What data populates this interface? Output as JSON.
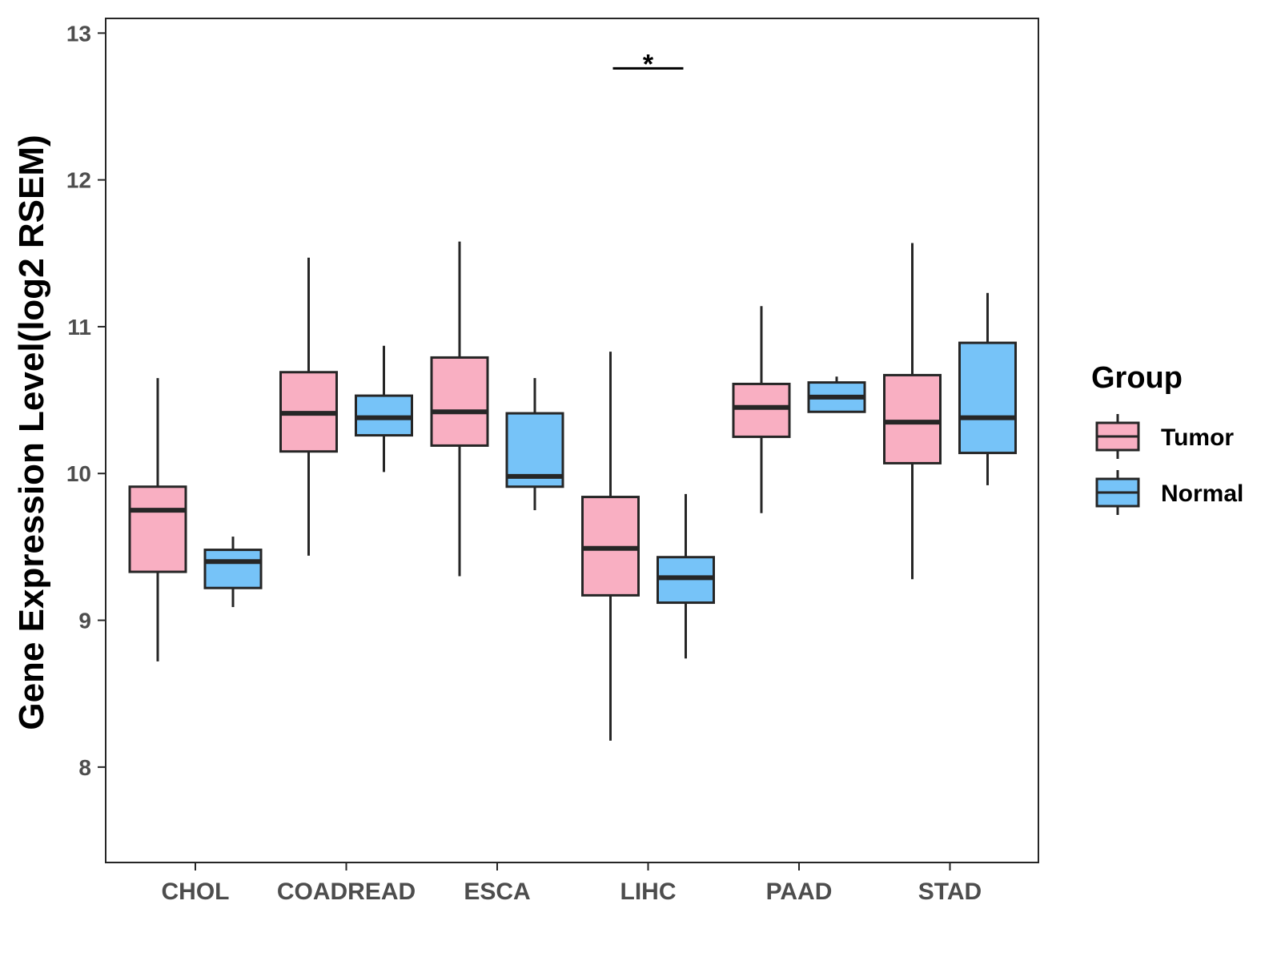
{
  "chart_data": {
    "type": "boxplot",
    "title": "",
    "xlabel": "",
    "ylabel": "Gene Expression Level(log2 RSEM)",
    "ylim": [
      7.35,
      13.1
    ],
    "yticks": [
      "8",
      "9",
      "10",
      "11",
      "12",
      "13"
    ],
    "grid": false,
    "categories": [
      "CHOL",
      "COADREAD",
      "ESCA",
      "LIHC",
      "PAAD",
      "STAD"
    ],
    "legend": {
      "title": "Group",
      "position": "right",
      "items": [
        {
          "name": "Tumor",
          "color": "#f9afc2"
        },
        {
          "name": "Normal",
          "color": "#76c3f8"
        }
      ]
    },
    "series": [
      {
        "name": "Tumor",
        "color": "#f9afc2",
        "boxes": [
          {
            "category": "CHOL",
            "min": 8.72,
            "q1": 9.33,
            "median": 9.75,
            "q3": 9.91,
            "max": 10.65
          },
          {
            "category": "COADREAD",
            "min": 9.44,
            "q1": 10.15,
            "median": 10.41,
            "q3": 10.69,
            "max": 11.47
          },
          {
            "category": "ESCA",
            "min": 9.3,
            "q1": 10.19,
            "median": 10.42,
            "q3": 10.79,
            "max": 11.58
          },
          {
            "category": "LIHC",
            "min": 8.18,
            "q1": 9.17,
            "median": 9.49,
            "q3": 9.84,
            "max": 10.83
          },
          {
            "category": "PAAD",
            "min": 9.73,
            "q1": 10.25,
            "median": 10.45,
            "q3": 10.61,
            "max": 11.14
          },
          {
            "category": "STAD",
            "min": 9.28,
            "q1": 10.07,
            "median": 10.35,
            "q3": 10.67,
            "max": 11.57
          }
        ]
      },
      {
        "name": "Normal",
        "color": "#76c3f8",
        "boxes": [
          {
            "category": "CHOL",
            "min": 9.09,
            "q1": 9.22,
            "median": 9.4,
            "q3": 9.48,
            "max": 9.57
          },
          {
            "category": "COADREAD",
            "min": 10.01,
            "q1": 10.26,
            "median": 10.38,
            "q3": 10.53,
            "max": 10.87
          },
          {
            "category": "ESCA",
            "min": 9.75,
            "q1": 9.91,
            "median": 9.98,
            "q3": 10.41,
            "max": 10.65
          },
          {
            "category": "LIHC",
            "min": 8.74,
            "q1": 9.12,
            "median": 9.29,
            "q3": 9.43,
            "max": 9.86
          },
          {
            "category": "PAAD",
            "min": 10.42,
            "q1": 10.42,
            "median": 10.52,
            "q3": 10.62,
            "max": 10.66
          },
          {
            "category": "STAD",
            "min": 9.92,
            "q1": 10.14,
            "median": 10.38,
            "q3": 10.89,
            "max": 11.23
          }
        ]
      }
    ],
    "annotations": [
      {
        "category": "LIHC",
        "label": "*",
        "y": 12.76
      }
    ]
  }
}
